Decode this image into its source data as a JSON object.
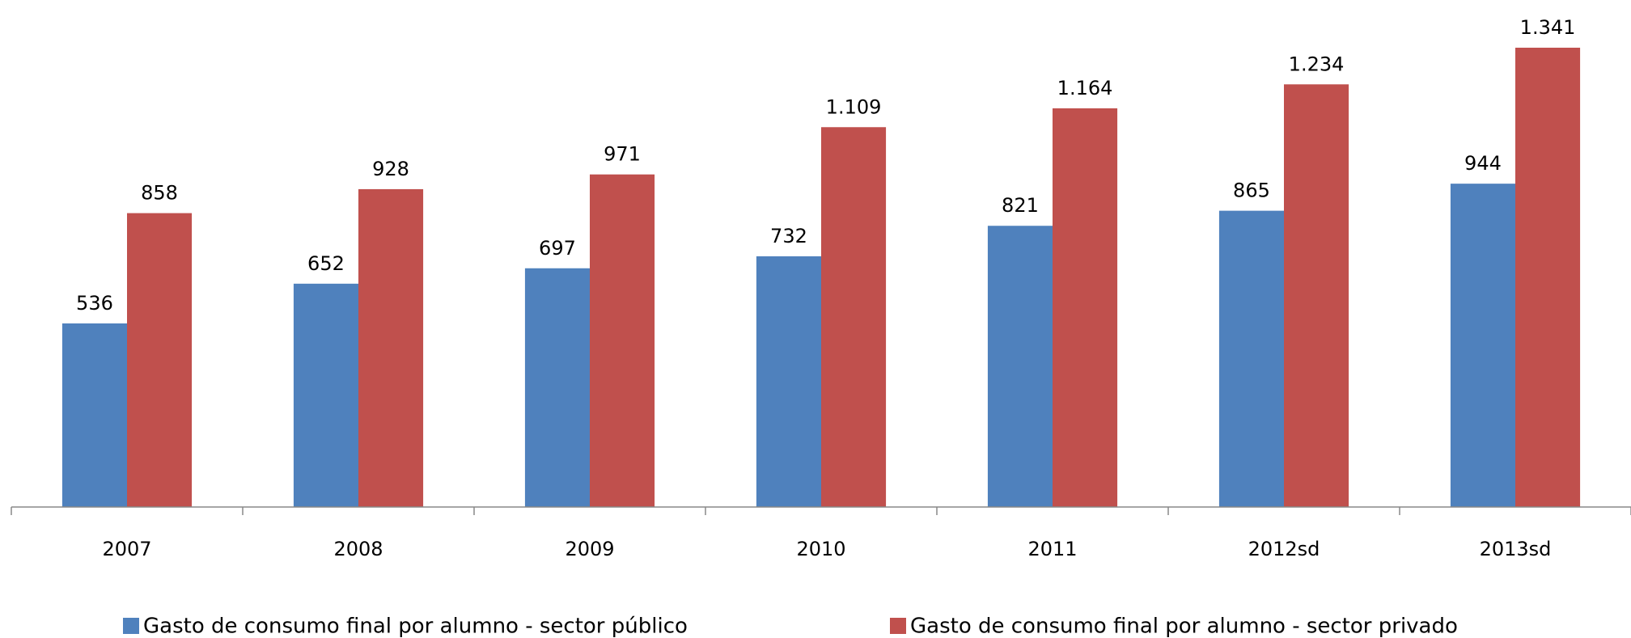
{
  "chart_data": {
    "type": "bar",
    "categories": [
      "2007",
      "2008",
      "2009",
      "2010",
      "2011",
      "2012sd",
      "2013sd"
    ],
    "series": [
      {
        "name": "Gasto de consumo final por alumno - sector público",
        "color": "#4f81bd",
        "values": [
          536,
          652,
          697,
          732,
          821,
          865,
          944
        ]
      },
      {
        "name": "Gasto de consumo final por alumno - sector privado",
        "color": "#c0504d",
        "values": [
          858,
          928,
          971,
          1109,
          1164,
          1234,
          1341
        ],
        "value_labels": [
          "858",
          "928",
          "971",
          "1.109",
          "1.164",
          "1.234",
          "1.341"
        ]
      }
    ],
    "ylim": [
      0,
      1400
    ],
    "legend": "bottom"
  }
}
